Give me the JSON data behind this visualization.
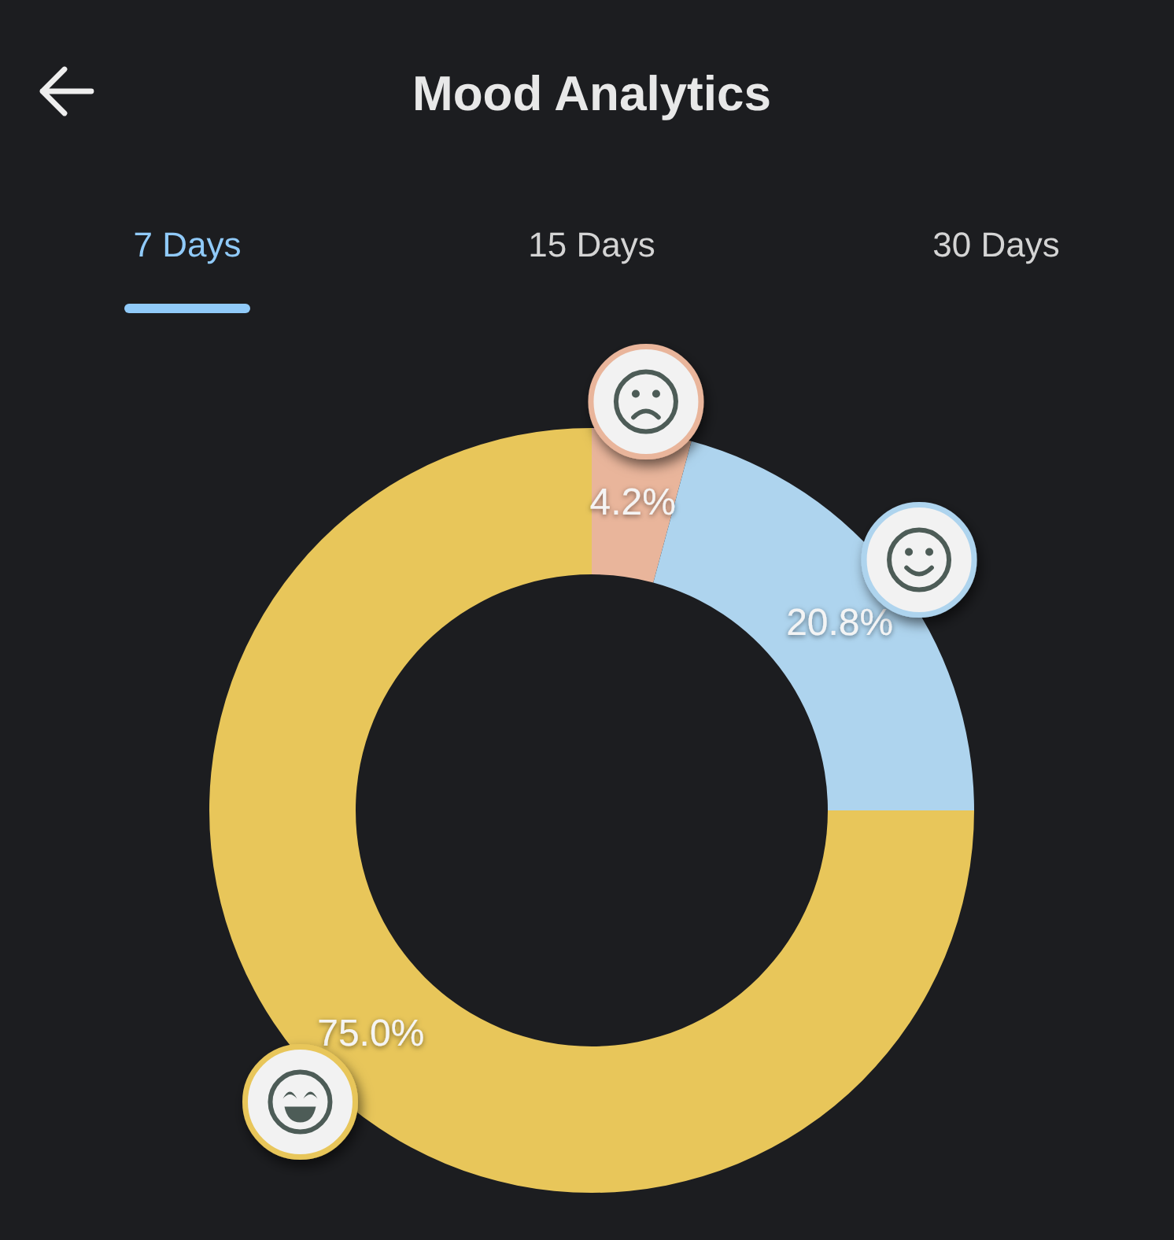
{
  "chart_data": {
    "type": "donut",
    "title": "Mood Analytics",
    "categories": [
      null,
      null,
      null
    ],
    "values": [
      4.2,
      20.8,
      75.0
    ],
    "value_labels": [
      "4.2%",
      "20.8%",
      "75.0%"
    ],
    "colors": [
      "#e9b59b",
      "#aed4ee",
      "#e8c65a"
    ],
    "annotations": [
      "7 Days",
      "15 Days",
      "30 Days"
    ]
  }
}
